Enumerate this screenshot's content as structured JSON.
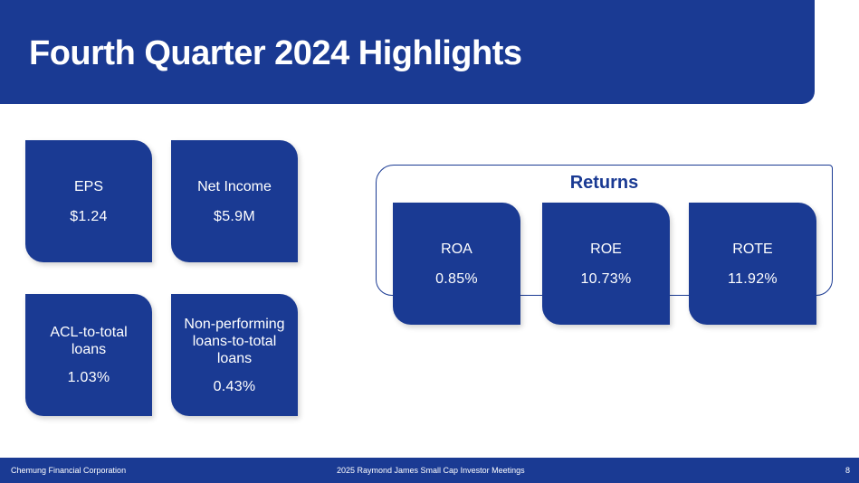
{
  "title": "Fourth Quarter 2024 Highlights",
  "cards": {
    "eps": {
      "label": "EPS",
      "value": "$1.24"
    },
    "net_income": {
      "label": "Net Income",
      "value": "$5.9M"
    },
    "acl": {
      "label": "ACL-to-total loans",
      "value": "1.03%"
    },
    "npl": {
      "label": "Non-performing loans-to-total loans",
      "value": "0.43%"
    }
  },
  "returns": {
    "title": "Returns",
    "roa": {
      "label": "ROA",
      "value": "0.85%"
    },
    "roe": {
      "label": "ROE",
      "value": "10.73%"
    },
    "rote": {
      "label": "ROTE",
      "value": "11.92%"
    }
  },
  "footer": {
    "company": "Chemung Financial Corporation",
    "event": "2025 Raymond James Small Cap Investor Meetings",
    "page": "8"
  },
  "colors": {
    "brand": "#1a3a93",
    "background": "#ffffff"
  }
}
